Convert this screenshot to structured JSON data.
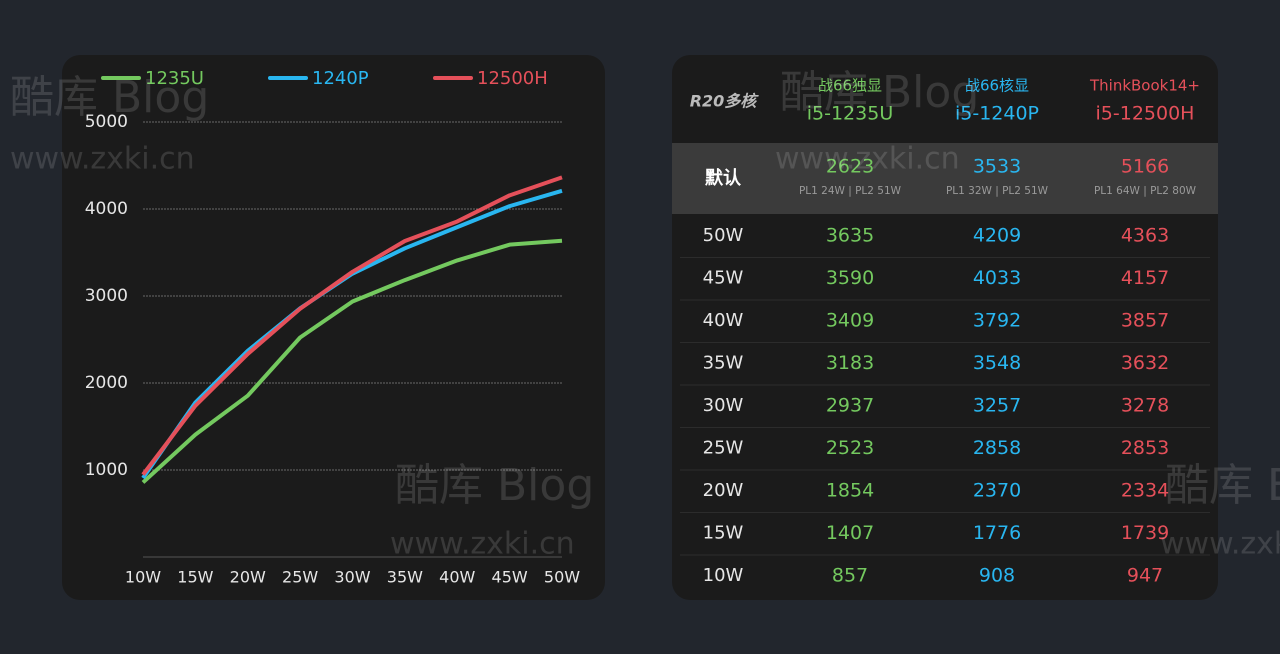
{
  "chart_data": {
    "type": "line",
    "categories": [
      "10W",
      "15W",
      "20W",
      "25W",
      "30W",
      "35W",
      "40W",
      "45W",
      "50W"
    ],
    "series": [
      {
        "name": "1235U",
        "color": "#74c95f",
        "values": [
          857,
          1407,
          1854,
          2523,
          2937,
          3183,
          3409,
          3590,
          3635
        ]
      },
      {
        "name": "1240P",
        "color": "#29b6f0",
        "values": [
          908,
          1776,
          2370,
          2858,
          3257,
          3548,
          3792,
          4033,
          4209
        ]
      },
      {
        "name": "12500H",
        "color": "#e5505a",
        "values": [
          947,
          1739,
          2334,
          2853,
          3278,
          3632,
          3857,
          4157,
          4363
        ]
      }
    ],
    "ylim": [
      0,
      5000
    ],
    "yticks": [
      1000,
      2000,
      3000,
      4000,
      5000
    ],
    "grid": true,
    "legend": "top"
  },
  "table": {
    "corner": "R20多核",
    "columns": [
      {
        "line1": "战66独显",
        "line2": "i5-1235U",
        "color": "#74c95f"
      },
      {
        "line1": "战66核显",
        "line2": "i5-1240P",
        "color": "#29b6f0"
      },
      {
        "line1": "ThinkBook14+",
        "line2": "i5-12500H",
        "color": "#e5505a"
      }
    ],
    "default_row": {
      "label": "默认",
      "values": [
        2623,
        3533,
        5166
      ],
      "notes": [
        "PL1 24W | PL2 51W",
        "PL1 32W | PL2 51W",
        "PL1 64W | PL2 80W"
      ]
    },
    "rows": [
      {
        "label": "50W",
        "values": [
          3635,
          4209,
          4363
        ]
      },
      {
        "label": "45W",
        "values": [
          3590,
          4033,
          4157
        ]
      },
      {
        "label": "40W",
        "values": [
          3409,
          3792,
          3857
        ]
      },
      {
        "label": "35W",
        "values": [
          3183,
          3548,
          3632
        ]
      },
      {
        "label": "30W",
        "values": [
          2937,
          3257,
          3278
        ]
      },
      {
        "label": "25W",
        "values": [
          2523,
          2858,
          2853
        ]
      },
      {
        "label": "20W",
        "values": [
          1854,
          2370,
          2334
        ]
      },
      {
        "label": "15W",
        "values": [
          1407,
          1776,
          1739
        ]
      },
      {
        "label": "10W",
        "values": [
          857,
          908,
          947
        ]
      }
    ]
  },
  "watermark": {
    "brand": "酷库 Blog",
    "site": "www.zxki.cn"
  }
}
